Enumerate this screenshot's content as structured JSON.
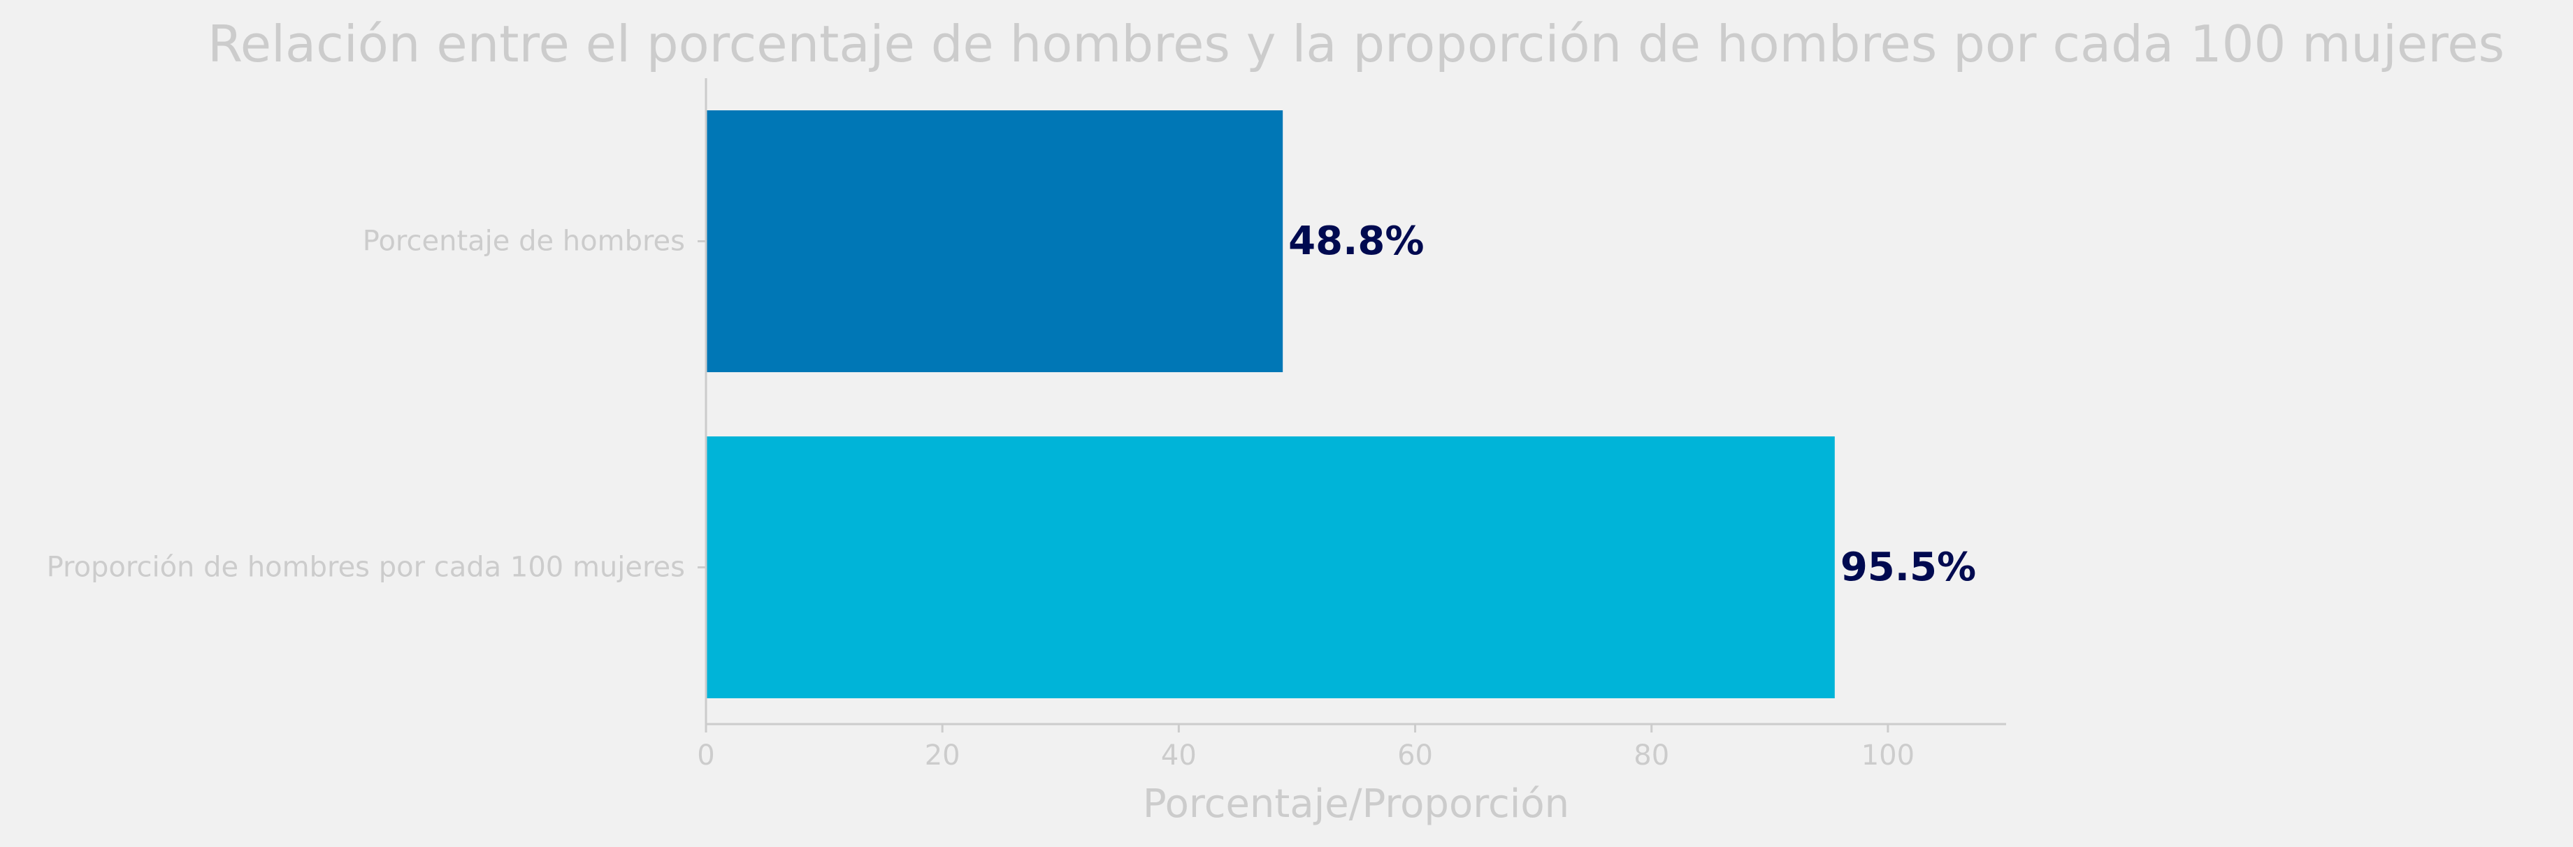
{
  "chart_data": {
    "type": "bar",
    "orientation": "horizontal",
    "title": "Relación entre el porcentaje de hombres y la proporción de hombres por cada 100 mujeres",
    "xlabel": "Porcentaje/Proporción",
    "ylabel": "",
    "xlim": [
      0,
      110
    ],
    "xticks": [
      0,
      20,
      40,
      60,
      80,
      100
    ],
    "xtick_labels": [
      "0",
      "20",
      "40",
      "60",
      "80",
      "100"
    ],
    "categories": [
      "Porcentaje de hombres",
      "Proporción de hombres por cada 100 mujeres"
    ],
    "values": [
      48.8,
      95.5
    ],
    "data_labels": [
      "48.8%",
      "95.5%"
    ],
    "colors": [
      "#0077b6",
      "#00b4d8"
    ],
    "grid": false,
    "legend": "none",
    "colors_theme": {
      "background": "#f1f1f1",
      "text": "#cccccc",
      "axis": "#cccccc",
      "data_label": "#000a50"
    }
  }
}
